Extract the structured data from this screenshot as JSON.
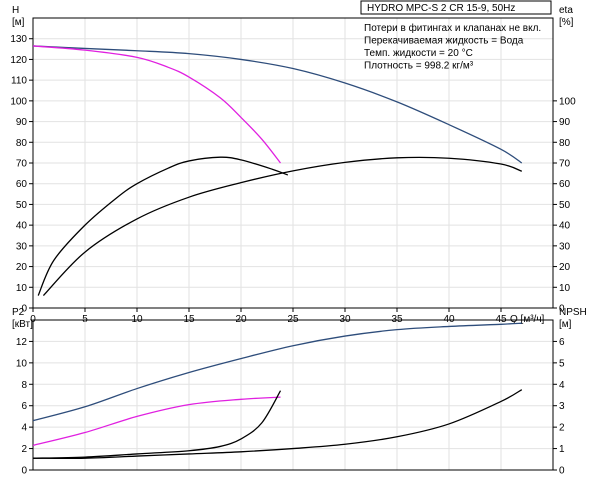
{
  "chart_data": [
    {
      "type": "line",
      "title": "HYDRO MPC-S 2 CR 15-9, 50Hz",
      "notes": [
        "Потери в фитингах и клапанах не вкл.",
        "Перекачиваемая жидкость = Вода",
        "Темп. жидкости = 20 °C",
        "Плотность = 998.2 кг/м³"
      ],
      "xlabel": "Q [м³/ч]",
      "ylabel_left": "H",
      "ylabel_left_unit": "[м]",
      "ylabel_right": "eta",
      "ylabel_right_unit": "[%]",
      "xlim": [
        0,
        50
      ],
      "ylim_left": [
        0,
        140
      ],
      "ylim_right": [
        0,
        140
      ],
      "x_ticks": [
        0,
        5,
        10,
        15,
        20,
        25,
        30,
        35,
        40,
        45
      ],
      "y_left_ticks": [
        0,
        10,
        20,
        30,
        40,
        50,
        60,
        70,
        80,
        90,
        100,
        110,
        120,
        130
      ],
      "y_right_ticks": [
        0,
        10,
        20,
        30,
        40,
        50,
        60,
        70,
        80,
        90,
        100
      ],
      "grid": true,
      "series": [
        {
          "axis": "left",
          "color": "#2e4d7b",
          "values": [
            [
              0,
              126.5
            ],
            [
              5,
              125.3
            ],
            [
              10,
              124.2
            ],
            [
              15,
              122.8
            ],
            [
              20,
              120.0
            ],
            [
              25,
              115.6
            ],
            [
              30,
              108.6
            ],
            [
              35,
              99.5
            ],
            [
              40,
              88.5
            ],
            [
              45,
              76.6
            ],
            [
              47,
              70.0
            ]
          ]
        },
        {
          "axis": "left",
          "color": "#e020e0",
          "values": [
            [
              0,
              126.5
            ],
            [
              5,
              124.5
            ],
            [
              10,
              121.0
            ],
            [
              13,
              116.2
            ],
            [
              15,
              111.5
            ],
            [
              18,
              101.5
            ],
            [
              20,
              92.0
            ],
            [
              22,
              81.5
            ],
            [
              23.8,
              70.0
            ]
          ]
        },
        {
          "axis": "right",
          "color": "#000000",
          "values": [
            [
              0.5,
              6
            ],
            [
              2,
              23
            ],
            [
              5,
              40
            ],
            [
              8,
              53
            ],
            [
              10,
              60
            ],
            [
              13,
              67.5
            ],
            [
              15,
              71
            ],
            [
              18,
              72.8
            ],
            [
              20,
              71.5
            ],
            [
              23,
              67
            ],
            [
              24.5,
              64.2
            ]
          ]
        },
        {
          "axis": "right",
          "color": "#000000",
          "values": [
            [
              1,
              6
            ],
            [
              5,
              27
            ],
            [
              10,
              43
            ],
            [
              15,
              53.5
            ],
            [
              20,
              60.5
            ],
            [
              25,
              66.2
            ],
            [
              30,
              70.3
            ],
            [
              35,
              72.5
            ],
            [
              40,
              72.3
            ],
            [
              45,
              69.5
            ],
            [
              47,
              66.0
            ]
          ]
        }
      ]
    },
    {
      "type": "line",
      "xlim": [
        0,
        50
      ],
      "ylabel_left": "P2",
      "ylabel_left_unit": "[кВт]",
      "ylabel_right": "NPSH",
      "ylabel_right_unit": "[м]",
      "ylim_left": [
        0,
        14
      ],
      "ylim_right": [
        0,
        7
      ],
      "y_left_ticks": [
        0,
        2,
        4,
        6,
        8,
        10,
        12
      ],
      "y_right_ticks": [
        0,
        1,
        2,
        3,
        4,
        5,
        6
      ],
      "grid": true,
      "series": [
        {
          "axis": "left",
          "color": "#2e4d7b",
          "values": [
            [
              0,
              4.6
            ],
            [
              5,
              5.9
            ],
            [
              10,
              7.6
            ],
            [
              15,
              9.1
            ],
            [
              20,
              10.4
            ],
            [
              25,
              11.6
            ],
            [
              30,
              12.5
            ],
            [
              35,
              13.1
            ],
            [
              40,
              13.4
            ],
            [
              45,
              13.6
            ],
            [
              47,
              13.7
            ]
          ]
        },
        {
          "axis": "left",
          "color": "#e020e0",
          "values": [
            [
              0,
              2.3
            ],
            [
              5,
              3.5
            ],
            [
              10,
              5.0
            ],
            [
              15,
              6.1
            ],
            [
              20,
              6.6
            ],
            [
              23.8,
              6.8
            ]
          ]
        },
        {
          "axis": "right",
          "color": "#000000",
          "values": [
            [
              0,
              0.55
            ],
            [
              5,
              0.6
            ],
            [
              10,
              0.75
            ],
            [
              15,
              0.9
            ],
            [
              18,
              1.1
            ],
            [
              20,
              1.45
            ],
            [
              22,
              2.2
            ],
            [
              23.8,
              3.7
            ]
          ]
        },
        {
          "axis": "right",
          "color": "#000000",
          "values": [
            [
              0,
              0.55
            ],
            [
              5,
              0.55
            ],
            [
              10,
              0.65
            ],
            [
              15,
              0.75
            ],
            [
              20,
              0.85
            ],
            [
              25,
              1.0
            ],
            [
              30,
              1.2
            ],
            [
              35,
              1.55
            ],
            [
              40,
              2.15
            ],
            [
              45,
              3.2
            ],
            [
              47,
              3.75
            ]
          ]
        }
      ]
    }
  ]
}
